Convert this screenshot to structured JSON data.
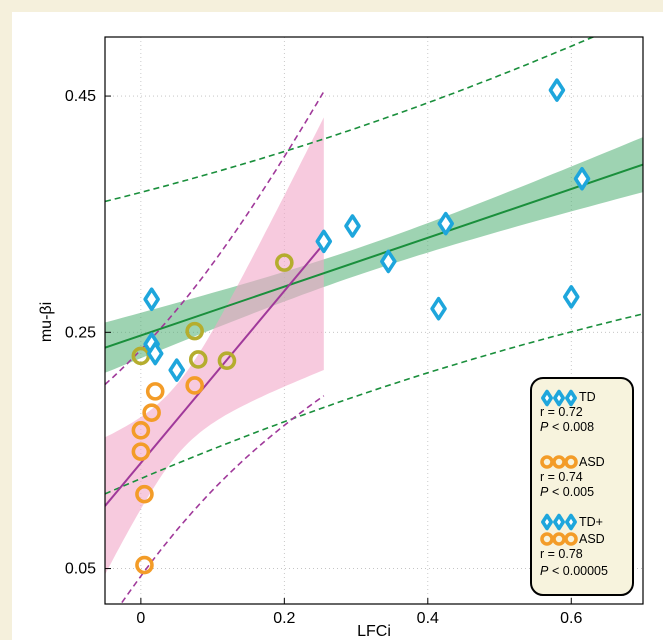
{
  "chart_data": {
    "type": "scatter",
    "xlabel": "LFCi",
    "ylabel": "mu-βi",
    "xlim": [
      -0.05,
      0.7
    ],
    "ylim": [
      0.02,
      0.5
    ],
    "xticks": [
      {
        "v": 0,
        "label": "0"
      },
      {
        "v": 0.2,
        "label": "0.2"
      },
      {
        "v": 0.4,
        "label": "0.4"
      },
      {
        "v": 0.6,
        "label": "0.6"
      }
    ],
    "yticks": [
      {
        "v": 0.05,
        "label": "0.05"
      },
      {
        "v": 0.25,
        "label": "0.25"
      },
      {
        "v": 0.45,
        "label": "0.45"
      }
    ],
    "grid": true,
    "legend_position": "bottom-right",
    "colors": {
      "td": "#1ea6dc",
      "asd": "#f39c28",
      "asd_alt": "#b5ad2e",
      "td_fit": "#1a8f3c",
      "td_band": "#4fae72",
      "asd_fit": "#a0399a",
      "asd_band": "#f2a7c8"
    },
    "series": [
      {
        "name": "TD",
        "marker": "diamond",
        "points": [
          [
            0.015,
            0.278
          ],
          [
            0.015,
            0.24
          ],
          [
            0.02,
            0.232
          ],
          [
            0.05,
            0.218
          ],
          [
            0.255,
            0.327
          ],
          [
            0.295,
            0.34
          ],
          [
            0.345,
            0.31
          ],
          [
            0.415,
            0.27
          ],
          [
            0.425,
            0.342
          ],
          [
            0.58,
            0.455
          ],
          [
            0.6,
            0.28
          ],
          [
            0.615,
            0.38
          ]
        ]
      },
      {
        "name": "ASD",
        "marker": "circle",
        "points": [
          [
            0.0,
            0.23
          ],
          [
            0.075,
            0.251
          ],
          [
            0.08,
            0.227
          ],
          [
            0.12,
            0.226
          ],
          [
            0.2,
            0.309
          ],
          [
            0.02,
            0.2
          ],
          [
            0.075,
            0.205
          ],
          [
            0.015,
            0.182
          ],
          [
            0.0,
            0.167
          ],
          [
            0.0,
            0.149
          ],
          [
            0.005,
            0.113
          ],
          [
            0.005,
            0.053
          ]
        ]
      }
    ],
    "fits": [
      {
        "name": "TD",
        "x": [
          -0.05,
          0.7
        ],
        "y": [
          0.237,
          0.392
        ]
      },
      {
        "name": "ASD",
        "x": [
          -0.05,
          0.255
        ],
        "y": [
          0.103,
          0.325
        ]
      }
    ],
    "legend": [
      {
        "label": "TD",
        "r": "r = 0.72",
        "p": "< 0.008"
      },
      {
        "label": "ASD",
        "r": "r = 0.74",
        "p": "< 0.005"
      },
      {
        "label": "TD+",
        "label2": "ASD",
        "r": "r = 0.78",
        "p": "< 0.00005"
      }
    ],
    "p_symbol": "P"
  }
}
